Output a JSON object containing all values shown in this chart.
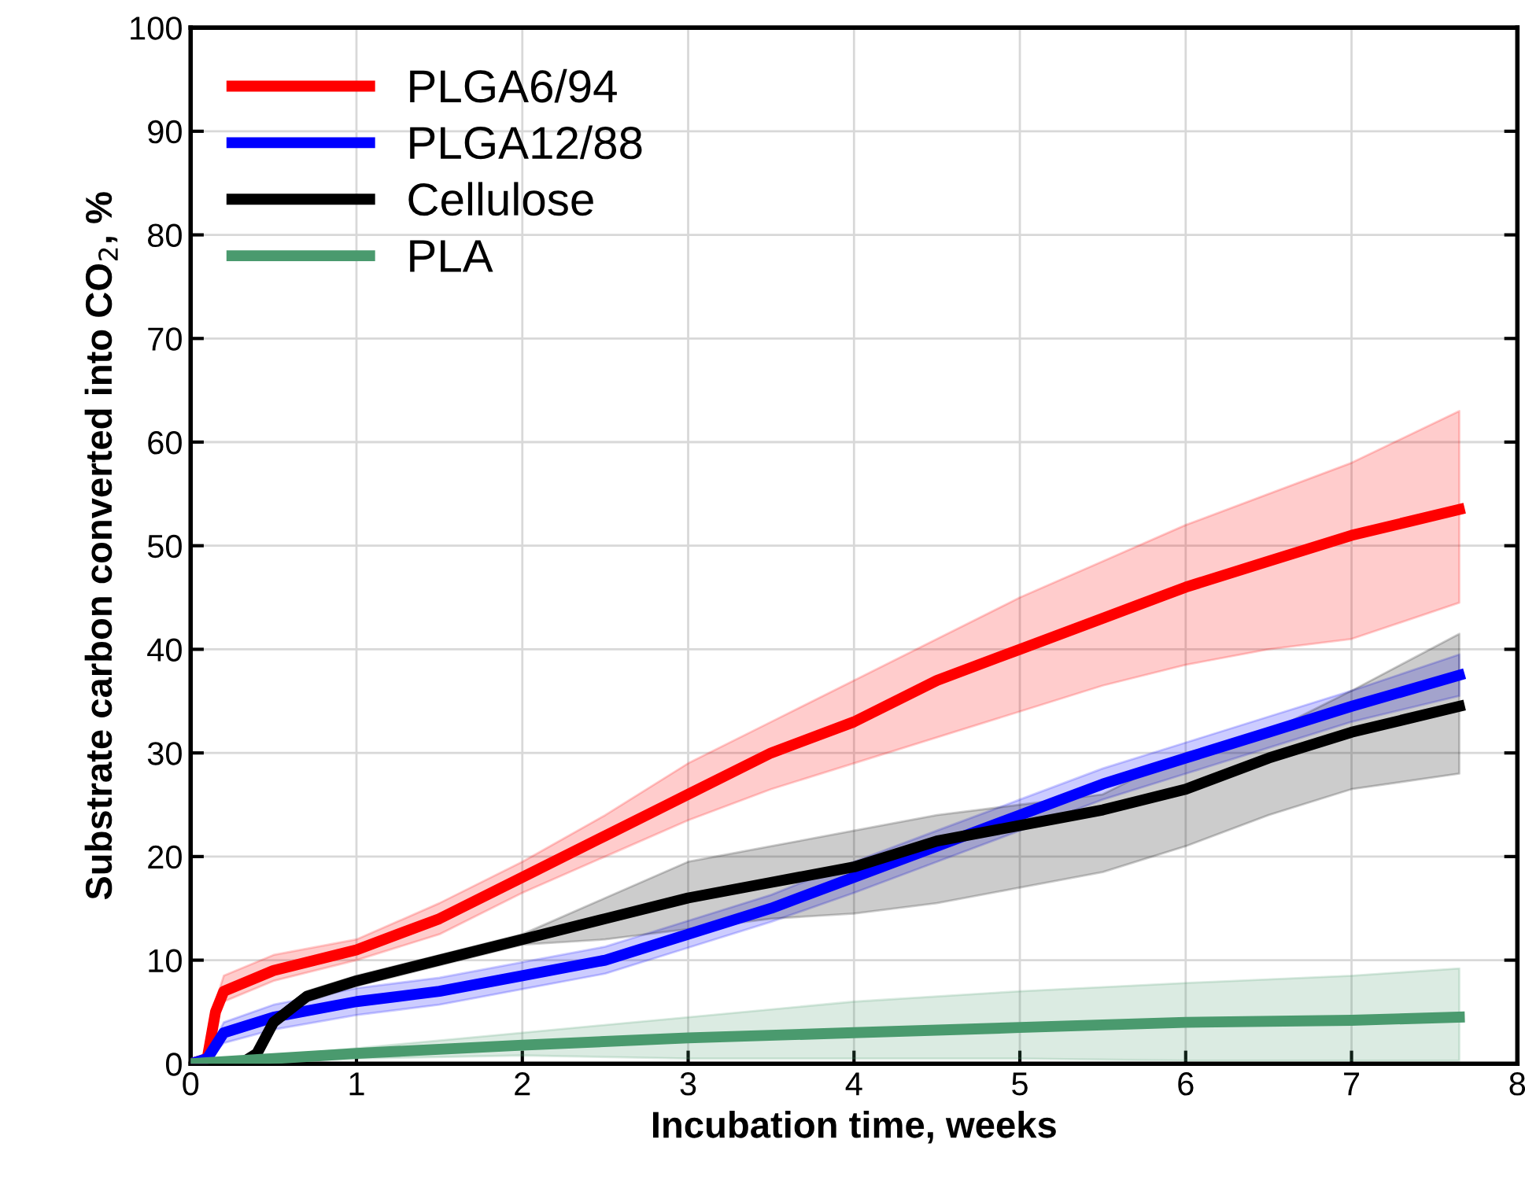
{
  "chart_data": {
    "type": "line",
    "xlabel": "Incubation time, weeks",
    "ylabel": "Substrate carbon converted into CO$_{2}$, %",
    "xlim": [
      0,
      8
    ],
    "ylim": [
      0,
      100
    ],
    "xticks": [
      0,
      1,
      2,
      3,
      4,
      5,
      6,
      7,
      8
    ],
    "yticks": [
      0,
      10,
      20,
      30,
      40,
      50,
      60,
      70,
      80,
      90,
      100
    ],
    "grid": true,
    "legend": "top left",
    "line_style": "solid",
    "marker": "none",
    "series": [
      {
        "name": "PLGA6/94",
        "color": "#ff0000",
        "x": [
          0,
          0.1,
          0.15,
          0.2,
          0.5,
          1,
          1.5,
          2,
          2.5,
          3,
          3.5,
          4,
          4.5,
          5,
          5.5,
          6,
          6.5,
          7,
          7.65
        ],
        "values": [
          0,
          0.5,
          5,
          7,
          9,
          11,
          14,
          18,
          22,
          26,
          30,
          33,
          37,
          40,
          43,
          46,
          48.5,
          51,
          53.5
        ],
        "lower": [
          0,
          0.3,
          4,
          6,
          8,
          10,
          12.5,
          16.5,
          20,
          23.5,
          26.5,
          29,
          31.5,
          34,
          36.5,
          38.5,
          40,
          41,
          44.5
        ],
        "upper": [
          0,
          0.8,
          6,
          8.5,
          10.5,
          12,
          15.5,
          19.5,
          24,
          29,
          33,
          37,
          41,
          45,
          48.5,
          52,
          55,
          58,
          63
        ]
      },
      {
        "name": "PLGA12/88",
        "color": "#0000ff",
        "x": [
          0,
          0.1,
          0.2,
          0.5,
          1,
          1.5,
          2,
          2.5,
          3,
          3.5,
          4,
          4.5,
          5,
          5.5,
          6,
          6.5,
          7,
          7.65
        ],
        "values": [
          0,
          0.5,
          3,
          4.5,
          6,
          7,
          8.5,
          10,
          12.5,
          15,
          18,
          21,
          24,
          27,
          29.5,
          32,
          34.5,
          37.5
        ],
        "lower": [
          0,
          0.3,
          2,
          3.3,
          4.7,
          5.7,
          7.2,
          8.7,
          11.2,
          13.7,
          16.5,
          19.5,
          22.5,
          25.5,
          28,
          30.5,
          33,
          35.5
        ],
        "upper": [
          0,
          0.8,
          4,
          5.7,
          7.3,
          8.3,
          9.8,
          11.3,
          13.8,
          16.3,
          19.5,
          22.5,
          25.5,
          28.5,
          31,
          33.5,
          36,
          39.5
        ]
      },
      {
        "name": "Cellulose",
        "color": "#000000",
        "x": [
          0,
          0.3,
          0.4,
          0.5,
          0.7,
          1,
          1.5,
          2,
          2.5,
          3,
          3.5,
          4,
          4.5,
          5,
          5.5,
          6,
          6.5,
          7,
          7.65
        ],
        "values": [
          0,
          0,
          1,
          4,
          6.5,
          8,
          10,
          12,
          14,
          16,
          17.5,
          19,
          21.5,
          23,
          24.5,
          26.5,
          29.5,
          32,
          34.5
        ],
        "lower": [
          0,
          0,
          0.7,
          3.5,
          6,
          7.5,
          9.5,
          11.5,
          12,
          13,
          14,
          14.5,
          15.5,
          17,
          18.5,
          21,
          24,
          26.5,
          28
        ],
        "upper": [
          0,
          0,
          1.3,
          4.5,
          7,
          8.5,
          10.5,
          12.5,
          16,
          19.5,
          21,
          22.5,
          24,
          25,
          26,
          30,
          32,
          36,
          41.5
        ]
      },
      {
        "name": "PLA",
        "color": "#4a9a6e",
        "x": [
          0,
          1,
          2,
          3,
          4,
          5,
          6,
          7,
          7.65
        ],
        "values": [
          0,
          1,
          1.8,
          2.5,
          3,
          3.5,
          4,
          4.2,
          4.5
        ],
        "lower": [
          0,
          0.5,
          0.8,
          0.5,
          0.5,
          0.5,
          0.3,
          0.3,
          0.3
        ],
        "upper": [
          0,
          1.5,
          3,
          4.5,
          6,
          7,
          7.8,
          8.5,
          9.2
        ]
      }
    ]
  }
}
